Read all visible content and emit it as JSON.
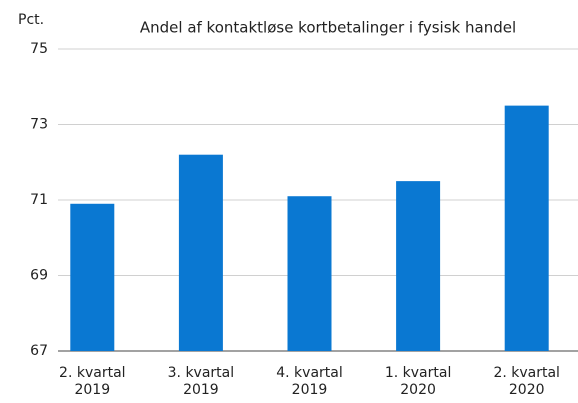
{
  "chart_data": {
    "type": "bar",
    "title": "Andel af kontaktløse kortbetalinger i fysisk handel",
    "y_label": "Pct.",
    "categories": [
      [
        "2. kvartal",
        "2019"
      ],
      [
        "3. kvartal",
        "2019"
      ],
      [
        "4. kvartal",
        "2019"
      ],
      [
        "1. kvartal",
        "2020"
      ],
      [
        "2. kvartal",
        "2020"
      ]
    ],
    "values": [
      70.9,
      72.2,
      71.1,
      71.5,
      73.5
    ],
    "color": "#0a78d2",
    "ylim": [
      67,
      75
    ],
    "yticks": [
      67,
      69,
      71,
      73,
      75
    ],
    "grid": true
  }
}
